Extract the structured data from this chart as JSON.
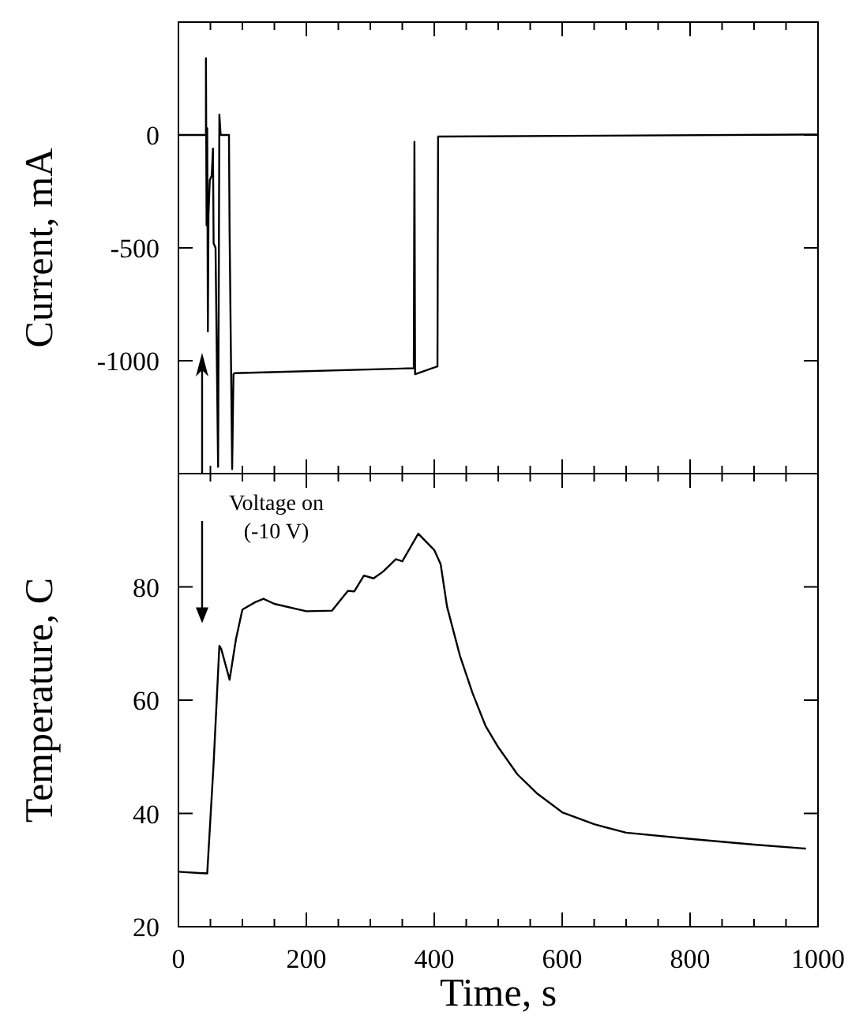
{
  "chart_data": [
    {
      "type": "line",
      "ylabel": "Current, mA",
      "xlim": [
        0,
        1000
      ],
      "ylim": [
        -1500,
        500
      ],
      "tick_labels": "y",
      "xticks": [
        0,
        {
          "value": 50,
          "label": null
        },
        200,
        {
          "value": 100,
          "label": null
        },
        {
          "value": 150,
          "label": null
        },
        {
          "value": 250,
          "label": null
        },
        {
          "value": 300,
          "label": null
        },
        {
          "value": 350,
          "label": null
        },
        400,
        {
          "value": 450,
          "label": null
        },
        {
          "value": 500,
          "label": null
        },
        {
          "value": 550,
          "label": null
        },
        600,
        {
          "value": 650,
          "label": null
        },
        {
          "value": 700,
          "label": null
        },
        {
          "value": 750,
          "label": null
        },
        800,
        {
          "value": 850,
          "label": null
        },
        {
          "value": 900,
          "label": null
        },
        {
          "value": 950,
          "label": null
        },
        1000
      ],
      "yticks": [
        -1000,
        -500,
        0
      ],
      "series": [
        {
          "color": "#000000",
          "x": [
            0,
            43,
            43,
            44,
            45,
            46,
            47,
            49,
            52,
            54,
            55,
            58,
            62,
            64,
            66,
            79,
            80,
            84,
            86,
            88,
            368,
            369,
            370,
            405,
            406,
            1000
          ],
          "values": [
            0,
            0,
            340,
            -400,
            30,
            -870,
            -350,
            -200,
            -180,
            -60,
            -480,
            -500,
            -1470,
            90,
            0,
            0,
            -430,
            -1480,
            -1060,
            -1055,
            -1033,
            -30,
            -1060,
            -1025,
            -7,
            2
          ]
        }
      ]
    },
    {
      "type": "line",
      "xlabel": "Time, s",
      "ylabel": "Temperature, C",
      "xlim": [
        0,
        1000
      ],
      "ylim": [
        20,
        100
      ],
      "xticks": [
        0,
        {
          "value": 50,
          "label": null
        },
        200,
        {
          "value": 100,
          "label": null
        },
        {
          "value": 150,
          "label": null
        },
        {
          "value": 250,
          "label": null
        },
        {
          "value": 300,
          "label": null
        },
        {
          "value": 350,
          "label": null
        },
        400,
        {
          "value": 450,
          "label": null
        },
        {
          "value": 500,
          "label": null
        },
        {
          "value": 550,
          "label": null
        },
        600,
        {
          "value": 650,
          "label": null
        },
        {
          "value": 700,
          "label": null
        },
        {
          "value": 750,
          "label": null
        },
        800,
        {
          "value": 850,
          "label": null
        },
        {
          "value": 900,
          "label": null
        },
        {
          "value": 950,
          "label": null
        },
        1000
      ],
      "yticks": [
        20,
        40,
        60,
        80
      ],
      "annotations": [
        "Voltage on\n(-10 V)"
      ],
      "series": [
        {
          "color": "#000000",
          "x": [
            0,
            45,
            55,
            64,
            67,
            80,
            90,
            100,
            120,
            133,
            150,
            200,
            240,
            265,
            275,
            290,
            305,
            320,
            340,
            350,
            375,
            400,
            410,
            420,
            440,
            460,
            480,
            500,
            530,
            560,
            600,
            650,
            700,
            800,
            900,
            980
          ],
          "values": [
            29.7,
            29.4,
            48.8,
            69.6,
            69,
            63.6,
            70.8,
            76,
            77.3,
            77.9,
            77,
            75.7,
            75.8,
            79.3,
            79.2,
            82,
            81.5,
            82.7,
            84.9,
            84.5,
            89.4,
            86.5,
            84,
            76.5,
            67.9,
            61.2,
            55.5,
            51.7,
            46.9,
            43.6,
            40.2,
            38.1,
            36.6,
            35.5,
            34.5,
            33.8
          ]
        }
      ]
    }
  ]
}
